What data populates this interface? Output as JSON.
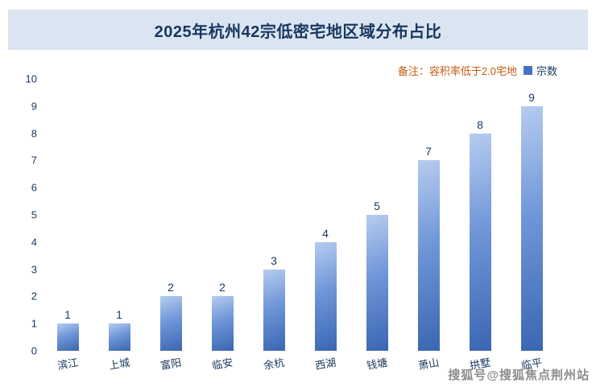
{
  "title": "2025年杭州42宗低密宅地区域分布占比",
  "note": {
    "text": "备注：容积率低于2.0宅地",
    "legend_label": "宗数",
    "legend_color": "#4472c4"
  },
  "watermark": "搜狐号@搜狐焦点荆州站",
  "colors": {
    "title_bg": "#dbe5f1",
    "title_text": "#17375e",
    "axis_text": "#17375e",
    "note_text": "#c55a11",
    "bar_gradient_top": "#b6ccf0",
    "bar_gradient_bottom": "#3a66b2"
  },
  "chart_data": {
    "type": "bar",
    "categories": [
      "滨江",
      "上城",
      "富阳",
      "临安",
      "余杭",
      "西湖",
      "钱塘",
      "萧山",
      "拱墅",
      "临平"
    ],
    "values": [
      1,
      1,
      2,
      2,
      3,
      4,
      5,
      7,
      8,
      9
    ],
    "series": [
      {
        "name": "宗数",
        "values": [
          1,
          1,
          2,
          2,
          3,
          4,
          5,
          7,
          8,
          9
        ]
      }
    ],
    "title": "2025年杭州42宗低密宅地区域分布占比",
    "xlabel": "",
    "ylabel": "",
    "ylim": [
      0,
      10
    ],
    "yticks": [
      0,
      1,
      2,
      3,
      4,
      5,
      6,
      7,
      8,
      9,
      10
    ],
    "grid": false,
    "legend": [
      "宗数"
    ],
    "legend_position": "top-right"
  }
}
